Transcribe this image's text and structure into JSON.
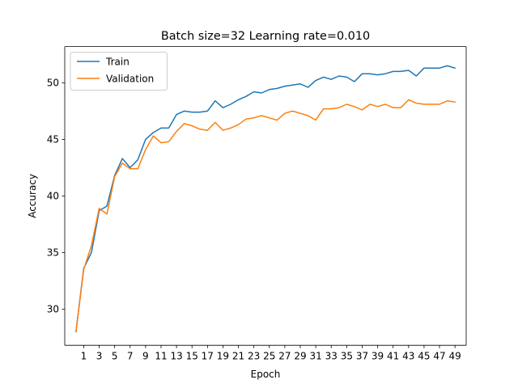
{
  "chart_data": {
    "type": "line",
    "title": "Batch size=32 Learning rate=0.010",
    "xlabel": "Epoch",
    "ylabel": "Accuracy",
    "xlim": [
      -1.45,
      50.45
    ],
    "ylim": [
      26.8,
      53.2
    ],
    "xticks": [
      1,
      3,
      5,
      7,
      9,
      11,
      13,
      15,
      17,
      19,
      21,
      23,
      25,
      27,
      29,
      31,
      33,
      35,
      37,
      39,
      41,
      43,
      45,
      47,
      49
    ],
    "yticks": [
      30,
      35,
      40,
      45,
      50
    ],
    "grid": false,
    "legend_position": "top-left",
    "x": [
      0,
      1,
      2,
      3,
      4,
      5,
      6,
      7,
      8,
      9,
      10,
      11,
      12,
      13,
      14,
      15,
      16,
      17,
      18,
      19,
      20,
      21,
      22,
      23,
      24,
      25,
      26,
      27,
      28,
      29,
      30,
      31,
      32,
      33,
      34,
      35,
      36,
      37,
      38,
      39,
      40,
      41,
      42,
      43,
      44,
      45,
      46,
      47,
      48,
      49
    ],
    "series": [
      {
        "name": "Train",
        "color": "#1f77b4",
        "values": [
          28.0,
          33.6,
          35.0,
          38.7,
          39.1,
          41.8,
          43.3,
          42.5,
          43.2,
          45.0,
          45.6,
          46.0,
          46.0,
          47.2,
          47.5,
          47.4,
          47.4,
          47.5,
          48.4,
          47.8,
          48.1,
          48.5,
          48.8,
          49.2,
          49.1,
          49.4,
          49.5,
          49.7,
          49.8,
          49.9,
          49.6,
          50.2,
          50.5,
          50.3,
          50.6,
          50.5,
          50.1,
          50.8,
          50.8,
          50.7,
          50.8,
          51.0,
          51.0,
          51.1,
          50.6,
          51.3,
          51.3,
          51.3,
          51.5,
          51.3
        ]
      },
      {
        "name": "Validation",
        "color": "#ff7f0e",
        "values": [
          28.0,
          33.5,
          35.6,
          38.9,
          38.4,
          41.7,
          42.9,
          42.4,
          42.4,
          44.1,
          45.3,
          44.7,
          44.8,
          45.7,
          46.4,
          46.2,
          45.9,
          45.8,
          46.5,
          45.8,
          46.0,
          46.3,
          46.8,
          46.9,
          47.1,
          46.9,
          46.7,
          47.3,
          47.5,
          47.3,
          47.1,
          46.7,
          47.7,
          47.7,
          47.8,
          48.1,
          47.9,
          47.6,
          48.1,
          47.9,
          48.1,
          47.8,
          47.8,
          48.5,
          48.2,
          48.1,
          48.1,
          48.1,
          48.4,
          48.3
        ]
      }
    ]
  }
}
